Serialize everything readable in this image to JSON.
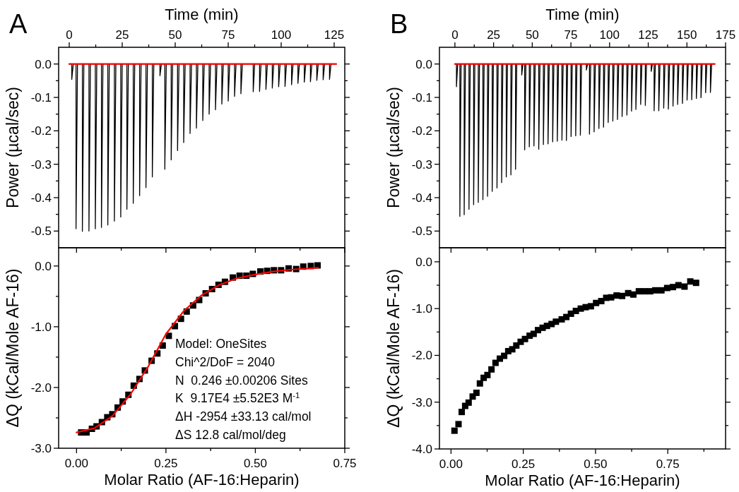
{
  "chart_data": [
    {
      "type": "line",
      "title": "A",
      "xlabel": "Time (min)",
      "ylabel": "Power (µcal/sec)",
      "xlim": [
        -5,
        130
      ],
      "ylim": [
        -0.55,
        0.05
      ],
      "xticks": [
        0,
        {
          "value": 12.5,
          "label": null
        },
        25,
        {
          "value": 37.5,
          "label": null
        },
        50,
        {
          "value": 62.5,
          "label": null
        },
        75,
        {
          "value": 87.5,
          "label": null
        },
        100,
        {
          "value": 112.5,
          "label": null
        },
        125
      ],
      "yticks": [
        {
          "value": -0.5,
          "label": "-0.5"
        },
        {
          "value": -0.45,
          "label": null
        },
        {
          "value": -0.4,
          "label": "-0.4"
        },
        {
          "value": -0.35,
          "label": null
        },
        {
          "value": -0.3,
          "label": "-0.3"
        },
        {
          "value": -0.25,
          "label": null
        },
        {
          "value": -0.2,
          "label": "-0.2"
        },
        {
          "value": -0.15,
          "label": null
        },
        {
          "value": -0.1,
          "label": "-0.1"
        },
        {
          "value": -0.05,
          "label": null
        },
        {
          "value": 0,
          "label": "0.0"
        }
      ],
      "series": [
        {
          "color": "#000000",
          "x": [
            0,
            1.2,
            1.2,
            1.9,
            3.2,
            3.2,
            3.9,
            6.2,
            6.2,
            6.9,
            9.3,
            9.3,
            10,
            12.3,
            12.3,
            13,
            15.2,
            15.2,
            15.9,
            18.2,
            18.2,
            18.9,
            21.3,
            21.3,
            22,
            24.3,
            24.3,
            25,
            27.2,
            27.2,
            27.9,
            30.2,
            30.2,
            30.9,
            33.2,
            33.2,
            33.9,
            36.2,
            36.2,
            36.9,
            39.2,
            39.2,
            39.9,
            42.8,
            42.8,
            43.5,
            45.1,
            45.1,
            45.8,
            48.1,
            48.1,
            48.8,
            51.1,
            51.1,
            51.8,
            54,
            54,
            54.7,
            57,
            57,
            57.7,
            60,
            60,
            60.7,
            63,
            63,
            63.7,
            66,
            66,
            66.7,
            69,
            69,
            69.7,
            72,
            72,
            72.7,
            75,
            75,
            75.7,
            78,
            78,
            78.7,
            81,
            81,
            81.7,
            86.8,
            86.8,
            87.5,
            89.8,
            89.8,
            90.5,
            92.8,
            92.8,
            93.5,
            95.8,
            95.8,
            96.5,
            98.8,
            98.8,
            99.5,
            101.8,
            101.8,
            102.5,
            104.9,
            104.9,
            105.6,
            107.9,
            107.9,
            108.6,
            110.9,
            110.9,
            111.6,
            113.8,
            113.8,
            114.5,
            116.8,
            116.8,
            117.5,
            119.8,
            119.8,
            120.5,
            122.8,
            122.8,
            123.5,
            126
          ],
          "values": [
            0,
            0,
            -0.046,
            0,
            0,
            -0.493,
            0,
            0,
            -0.501,
            0,
            0,
            -0.5,
            0,
            0,
            -0.493,
            0,
            0,
            -0.489,
            0,
            0,
            -0.482,
            0,
            0,
            -0.47,
            0,
            0,
            -0.458,
            0,
            0,
            -0.435,
            0,
            0,
            -0.417,
            0,
            0,
            -0.394,
            0,
            0,
            -0.37,
            0,
            0,
            -0.338,
            0,
            0,
            -0.035,
            0,
            0,
            -0.315,
            0,
            0,
            -0.287,
            0,
            0,
            -0.259,
            0,
            0,
            -0.235,
            0,
            0,
            -0.208,
            0,
            0,
            -0.192,
            0,
            0,
            -0.169,
            0,
            0,
            -0.15,
            0,
            0,
            -0.137,
            0,
            0,
            -0.12,
            0,
            0,
            -0.111,
            0,
            0,
            -0.097,
            0,
            0,
            -0.089,
            0,
            0,
            -0.083,
            0,
            0,
            -0.082,
            0,
            0,
            -0.076,
            0,
            0,
            -0.072,
            0,
            0,
            -0.068,
            0,
            0,
            -0.067,
            0,
            0,
            -0.062,
            0,
            0,
            -0.058,
            0,
            0,
            -0.054,
            0,
            0,
            -0.053,
            0,
            0,
            -0.049,
            0,
            0,
            -0.047,
            0,
            0,
            -0.046,
            0,
            0
          ]
        },
        {
          "color": "#ff0000",
          "x": [
            0,
            126
          ],
          "values": [
            0,
            0
          ]
        }
      ]
    },
    {
      "type": "scatter",
      "xlabel": "Molar Ratio (AF-16:Heparin)",
      "ylabel": "ΔQ (kCal/Mole AF-16)",
      "xlim": [
        -0.05,
        0.75
      ],
      "ylim": [
        -3.0,
        0.3
      ],
      "xticks": [
        {
          "value": 0,
          "label": "0.00"
        },
        {
          "value": 0.125,
          "label": null
        },
        {
          "value": 0.25,
          "label": "0.25"
        },
        {
          "value": 0.375,
          "label": null
        },
        {
          "value": 0.5,
          "label": "0.50"
        },
        {
          "value": 0.625,
          "label": null
        },
        {
          "value": 0.75,
          "label": "0.75"
        }
      ],
      "yticks": [
        {
          "value": -3,
          "label": "-3.0"
        },
        {
          "value": -2.5,
          "label": null
        },
        {
          "value": -2,
          "label": "-2.0"
        },
        {
          "value": -1.5,
          "label": null
        },
        {
          "value": -1,
          "label": "-1.0"
        },
        {
          "value": -0.5,
          "label": null
        },
        {
          "value": 0,
          "label": "0.0"
        }
      ],
      "annotations": [
        "Model: OneSites",
        "Chi^2/DoF = 2040",
        "N  0.246 ±0.00206 Sites",
        "K  9.17E4 ±5.52E3 M$^{-1}$",
        "ΔH -2954 ±33.13 cal/mol",
        "ΔS 12.8 cal/mol/deg"
      ],
      "series": [
        {
          "color": "#000000",
          "marker": "square",
          "x": [
            0.013,
            0.028,
            0.043,
            0.056,
            0.071,
            0.086,
            0.1,
            0.115,
            0.129,
            0.145,
            0.16,
            0.176,
            0.191,
            0.21,
            0.226,
            0.241,
            0.258,
            0.275,
            0.292,
            0.308,
            0.326,
            0.343,
            0.361,
            0.379,
            0.397,
            0.415,
            0.437,
            0.456,
            0.475,
            0.493,
            0.514,
            0.533,
            0.552,
            0.572,
            0.593,
            0.614,
            0.634,
            0.655,
            0.674
          ],
          "values": [
            -2.74,
            -2.74,
            -2.68,
            -2.64,
            -2.57,
            -2.49,
            -2.44,
            -2.33,
            -2.23,
            -2.12,
            -1.97,
            -1.86,
            -1.72,
            -1.56,
            -1.44,
            -1.31,
            -1.15,
            -0.99,
            -0.87,
            -0.75,
            -0.65,
            -0.56,
            -0.45,
            -0.38,
            -0.31,
            -0.26,
            -0.19,
            -0.16,
            -0.16,
            -0.13,
            -0.09,
            -0.08,
            -0.07,
            -0.07,
            -0.04,
            -0.05,
            -0.01,
            0,
            0.01
          ]
        },
        {
          "type": "line",
          "color": "#ff0000",
          "x": [
            0,
            0.05,
            0.1,
            0.15,
            0.2,
            0.25,
            0.3,
            0.35,
            0.4,
            0.45,
            0.5,
            0.55,
            0.6,
            0.65,
            0.675
          ],
          "values": [
            -2.74,
            -2.67,
            -2.47,
            -2.12,
            -1.66,
            -1.12,
            -0.74,
            -0.48,
            -0.31,
            -0.2,
            -0.14,
            -0.09,
            -0.06,
            -0.04,
            -0.03
          ]
        }
      ]
    },
    {
      "type": "line",
      "title": "B",
      "xlabel": "Time (min)",
      "ylabel": "Power (µcal/sec)",
      "xlim": [
        -10,
        175
      ],
      "ylim": [
        -0.55,
        0.05
      ],
      "xticks": [
        0,
        {
          "value": 12.5,
          "label": null
        },
        25,
        {
          "value": 37.5,
          "label": null
        },
        50,
        {
          "value": 62.5,
          "label": null
        },
        75,
        {
          "value": 87.5,
          "label": null
        },
        100,
        {
          "value": 112.5,
          "label": null
        },
        125,
        {
          "value": 137.5,
          "label": null
        },
        150,
        {
          "value": 162.5,
          "label": null
        },
        175
      ],
      "yticks": [
        {
          "value": -0.5,
          "label": "-0.5"
        },
        {
          "value": -0.45,
          "label": null
        },
        {
          "value": -0.4,
          "label": "-0.4"
        },
        {
          "value": -0.35,
          "label": null
        },
        {
          "value": -0.3,
          "label": "-0.3"
        },
        {
          "value": -0.25,
          "label": null
        },
        {
          "value": -0.2,
          "label": "-0.2"
        },
        {
          "value": -0.15,
          "label": null
        },
        {
          "value": -0.1,
          "label": "-0.1"
        },
        {
          "value": -0.05,
          "label": null
        },
        {
          "value": 0,
          "label": "0.0"
        }
      ],
      "series": [
        {
          "color": "#000000",
          "x": [
            0,
            1,
            1,
            1.8,
            3.2,
            3.2,
            4,
            6,
            6,
            6.8,
            9.1,
            9.1,
            9.9,
            12.1,
            12.1,
            12.9,
            15.1,
            15.1,
            15.9,
            18.1,
            18.1,
            18.9,
            21.1,
            21.1,
            21.9,
            24.1,
            24.1,
            24.9,
            27.2,
            27.2,
            28,
            30.2,
            30.2,
            31,
            33.2,
            33.2,
            34,
            36.2,
            36.2,
            37,
            39.2,
            39.2,
            40,
            43.2,
            43.2,
            44,
            45.1,
            45.1,
            45.9,
            48.1,
            48.1,
            48.9,
            51.1,
            51.1,
            51.9,
            54.2,
            54.2,
            55,
            57.2,
            57.2,
            58,
            60.2,
            60.2,
            61,
            63.2,
            63.2,
            64,
            66.2,
            66.2,
            67,
            69.2,
            69.2,
            70,
            72.1,
            72.1,
            72.9,
            75.1,
            75.1,
            75.9,
            78.1,
            78.1,
            78.9,
            81.1,
            81.1,
            81.9,
            85,
            85,
            85.8,
            87,
            87,
            87.8,
            90,
            90,
            90.8,
            93.1,
            93.1,
            93.9,
            96.1,
            96.1,
            96.9,
            99.1,
            99.1,
            99.9,
            102.1,
            102.1,
            102.9,
            105.1,
            105.1,
            105.9,
            108.1,
            108.1,
            108.9,
            111.2,
            111.2,
            112,
            114.2,
            114.2,
            115,
            117,
            117,
            117.8,
            120.1,
            120.1,
            120.9,
            123.1,
            123.1,
            123.9,
            126.9,
            126.9,
            127.7,
            128.8,
            128.8,
            129.6,
            131.8,
            131.8,
            132.6,
            135,
            135,
            135.8,
            138,
            138,
            138.8,
            141,
            141,
            141.8,
            144,
            144,
            144.8,
            147.1,
            147.1,
            147.9,
            150.1,
            150.1,
            150.9,
            153.1,
            153.1,
            153.9,
            156.1,
            156.1,
            156.9,
            159.1,
            159.1,
            159.9,
            162.1,
            162.1,
            162.9,
            165.2,
            165.2,
            166,
            168
          ],
          "values": [
            0,
            0,
            -0.068,
            0,
            0,
            -0.456,
            0,
            0,
            -0.451,
            0,
            0,
            -0.435,
            0,
            0,
            -0.421,
            0,
            0,
            -0.414,
            0,
            0,
            -0.406,
            0,
            0,
            -0.396,
            0,
            0,
            -0.381,
            0,
            0,
            -0.371,
            0,
            0,
            -0.355,
            0,
            0,
            -0.338,
            0,
            0,
            -0.332,
            0,
            0,
            -0.315,
            0,
            0,
            -0.033,
            0,
            0,
            -0.257,
            0,
            0,
            -0.248,
            0,
            0,
            -0.245,
            0,
            0,
            -0.255,
            0,
            0,
            -0.241,
            0,
            0,
            -0.239,
            0,
            0,
            -0.233,
            0,
            0,
            -0.231,
            0,
            0,
            -0.228,
            0,
            0,
            -0.229,
            0,
            0,
            -0.217,
            0,
            0,
            -0.215,
            0,
            0,
            -0.213,
            0,
            0,
            -0.018,
            0,
            0,
            -0.21,
            0,
            0,
            -0.203,
            0,
            0,
            -0.193,
            0,
            0,
            -0.189,
            0,
            0,
            -0.175,
            0,
            0,
            -0.171,
            0,
            0,
            -0.166,
            0,
            0,
            -0.157,
            0,
            0,
            -0.153,
            0,
            0,
            -0.141,
            0,
            0,
            -0.136,
            0,
            0,
            -0.121,
            0,
            0,
            -0.124,
            0,
            0,
            -0.022,
            0,
            0,
            -0.14,
            0,
            0,
            -0.14,
            0,
            0,
            -0.132,
            0,
            0,
            -0.135,
            0,
            0,
            -0.126,
            0,
            0,
            -0.121,
            0,
            0,
            -0.118,
            0,
            0,
            -0.108,
            0,
            0,
            -0.107,
            0,
            0,
            -0.103,
            0,
            0,
            -0.101,
            0,
            0,
            -0.086,
            0,
            0,
            -0.085,
            0,
            0
          ]
        },
        {
          "color": "#ff0000",
          "x": [
            0,
            168
          ],
          "values": [
            0,
            0
          ]
        }
      ]
    },
    {
      "type": "scatter",
      "marker": "square",
      "xlabel": "Molar Ratio (AF-16:Heparin)",
      "ylabel": "ΔQ (kCal/Mole AF-16)",
      "xlim": [
        -0.04,
        0.95
      ],
      "ylim": [
        -4.0,
        0.3
      ],
      "xticks": [
        {
          "value": 0,
          "label": "0.00"
        },
        {
          "value": 0.125,
          "label": null
        },
        {
          "value": 0.25,
          "label": "0.25"
        },
        {
          "value": 0.375,
          "label": null
        },
        {
          "value": 0.5,
          "label": "0.50"
        },
        {
          "value": 0.625,
          "label": null
        },
        {
          "value": 0.75,
          "label": "0.75"
        },
        {
          "value": 0.875,
          "label": null
        }
      ],
      "yticks": [
        {
          "value": -4,
          "label": "-4.0"
        },
        {
          "value": -3.5,
          "label": null
        },
        {
          "value": -3,
          "label": "-3.0"
        },
        {
          "value": -2.5,
          "label": null
        },
        {
          "value": -2,
          "label": "-2.0"
        },
        {
          "value": -1.5,
          "label": null
        },
        {
          "value": -1,
          "label": "-1.0"
        },
        {
          "value": -0.5,
          "label": null
        },
        {
          "value": 0,
          "label": "0.0"
        }
      ],
      "series": [
        {
          "color": "#000000",
          "x": [
            0.012,
            0.026,
            0.037,
            0.049,
            0.061,
            0.075,
            0.088,
            0.1,
            0.113,
            0.126,
            0.14,
            0.154,
            0.169,
            0.184,
            0.198,
            0.212,
            0.226,
            0.241,
            0.256,
            0.272,
            0.286,
            0.301,
            0.317,
            0.332,
            0.348,
            0.363,
            0.383,
            0.399,
            0.415,
            0.432,
            0.449,
            0.466,
            0.484,
            0.502,
            0.52,
            0.537,
            0.554,
            0.573,
            0.592,
            0.613,
            0.631,
            0.65,
            0.669,
            0.689,
            0.707,
            0.728,
            0.748,
            0.768,
            0.787,
            0.808,
            0.828,
            0.848
          ],
          "values": [
            -3.61,
            -3.47,
            -3.21,
            -3.08,
            -3.01,
            -2.88,
            -2.8,
            -2.6,
            -2.48,
            -2.42,
            -2.3,
            -2.16,
            -2.07,
            -2.01,
            -1.91,
            -1.87,
            -1.79,
            -1.71,
            -1.65,
            -1.58,
            -1.54,
            -1.46,
            -1.41,
            -1.37,
            -1.33,
            -1.28,
            -1.23,
            -1.18,
            -1.11,
            -1.05,
            -1,
            -0.97,
            -0.95,
            -0.88,
            -0.84,
            -0.77,
            -0.76,
            -0.72,
            -0.73,
            -0.67,
            -0.7,
            -0.63,
            -0.63,
            -0.63,
            -0.61,
            -0.61,
            -0.56,
            -0.54,
            -0.5,
            -0.53,
            -0.42,
            -0.45
          ]
        }
      ]
    }
  ]
}
